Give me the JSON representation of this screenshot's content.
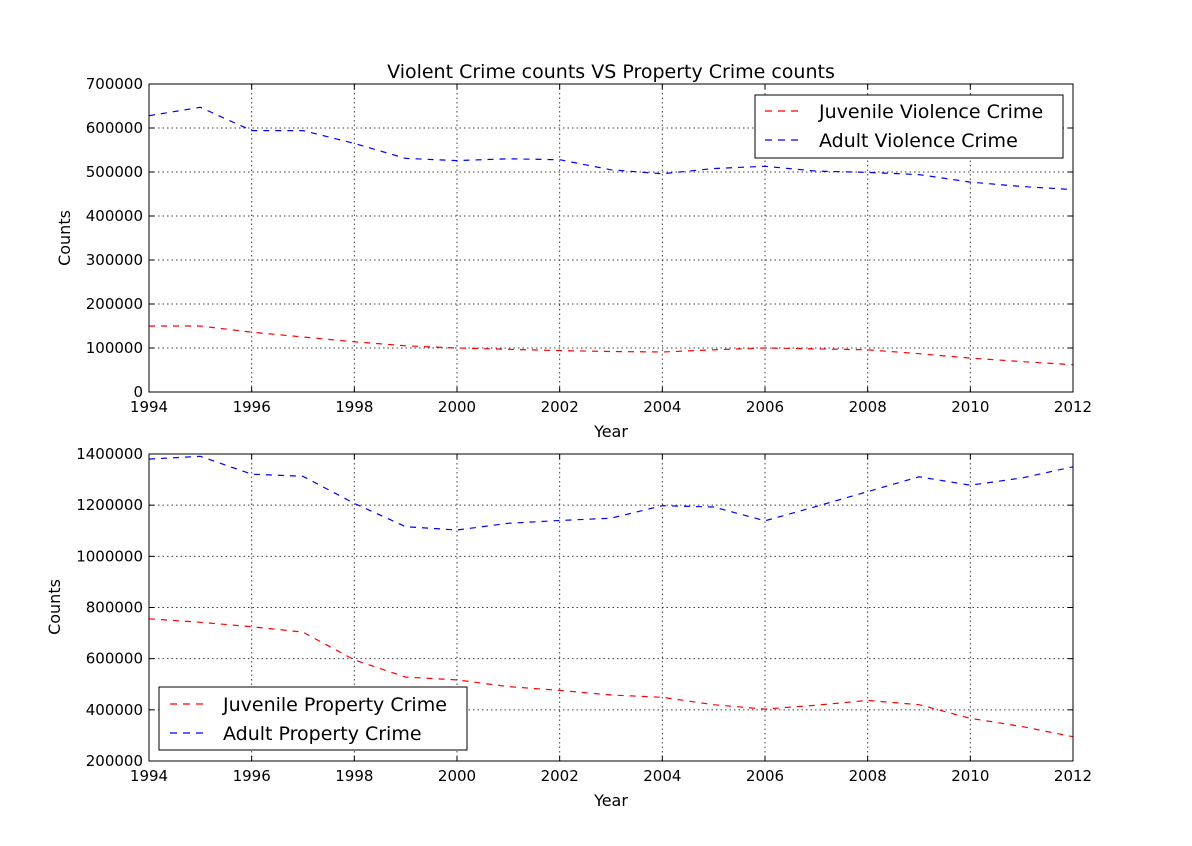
{
  "chart_data": [
    {
      "type": "line",
      "title": "Violent Crime counts VS Property Crime counts",
      "xlabel": "Year",
      "ylabel": "Counts",
      "xlim": [
        1994,
        2012
      ],
      "ylim": [
        0,
        700000
      ],
      "x_ticks": [
        1994,
        1996,
        1998,
        2000,
        2002,
        2004,
        2006,
        2008,
        2010,
        2012
      ],
      "y_ticks": [
        0,
        100000,
        200000,
        300000,
        400000,
        500000,
        600000,
        700000
      ],
      "grid": true,
      "legend_position": "top-right",
      "x": [
        1994,
        1995,
        1996,
        1997,
        1998,
        1999,
        2000,
        2001,
        2002,
        2003,
        2004,
        2005,
        2006,
        2007,
        2008,
        2009,
        2010,
        2011,
        2012
      ],
      "series": [
        {
          "name": "Juvenile Violence Crime",
          "color": "#ff0000",
          "line_style": "dashed",
          "values": [
            150000,
            150000,
            136000,
            125000,
            114000,
            105000,
            100000,
            97000,
            94000,
            92000,
            91000,
            96000,
            100000,
            98000,
            96000,
            87000,
            77000,
            69000,
            62000
          ]
        },
        {
          "name": "Adult Violence Crime",
          "color": "#0000ff",
          "line_style": "dashed",
          "values": [
            628000,
            647000,
            594000,
            594000,
            565000,
            531000,
            526000,
            530000,
            528000,
            505000,
            496000,
            508000,
            513000,
            502000,
            499000,
            494000,
            477000,
            467000,
            460000
          ]
        }
      ]
    },
    {
      "type": "line",
      "title": "",
      "xlabel": "Year",
      "ylabel": "Counts",
      "xlim": [
        1994,
        2012
      ],
      "ylim": [
        200000,
        1400000
      ],
      "x_ticks": [
        1994,
        1996,
        1998,
        2000,
        2002,
        2004,
        2006,
        2008,
        2010,
        2012
      ],
      "y_ticks": [
        200000,
        400000,
        600000,
        800000,
        1000000,
        1200000,
        1400000
      ],
      "grid": true,
      "legend_position": "bottom-left",
      "x": [
        1994,
        1995,
        1996,
        1997,
        1998,
        1999,
        2000,
        2001,
        2002,
        2003,
        2004,
        2005,
        2006,
        2007,
        2008,
        2009,
        2010,
        2011,
        2012
      ],
      "series": [
        {
          "name": "Juvenile Property Crime",
          "color": "#ff0000",
          "line_style": "dashed",
          "values": [
            756000,
            742000,
            725000,
            704000,
            595000,
            528000,
            517000,
            491000,
            476000,
            458000,
            449000,
            420000,
            403000,
            418000,
            437000,
            420000,
            367000,
            335000,
            295000
          ]
        },
        {
          "name": "Adult Property Crime",
          "color": "#0000ff",
          "line_style": "dashed",
          "values": [
            1380000,
            1391000,
            1321000,
            1313000,
            1207000,
            1116000,
            1103000,
            1129000,
            1140000,
            1149000,
            1198000,
            1193000,
            1139000,
            1195000,
            1253000,
            1311000,
            1278000,
            1306000,
            1350000
          ]
        }
      ]
    }
  ]
}
